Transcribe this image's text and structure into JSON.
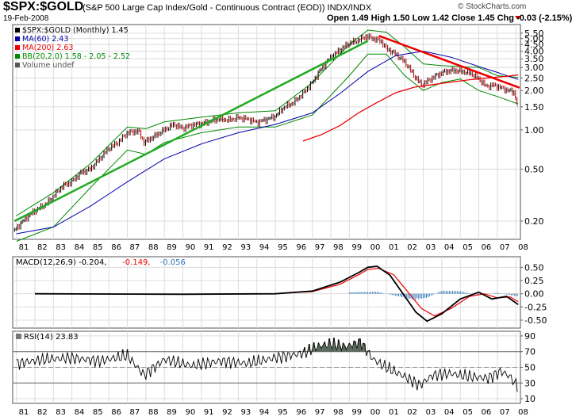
{
  "header": {
    "ticker": "$SPX:$GOLD",
    "subtitle": "(S&P 500 Large Cap Index/Gold - Continuous Contract (EOD)) INDX/INDX",
    "date": "19-Feb-2008",
    "ohlc": "Open 1.49  High 1.50  Low 1.42  Close 1.45  Chg -0.03 (-2.15%)",
    "credit": "© StockCharts.com"
  },
  "colors": {
    "price": "#000000",
    "up_bar": "#000000",
    "down_bar": "#cc0000",
    "ma60": "#0000aa",
    "ma200": "#ee0000",
    "bb": "#008800",
    "trend_up": "#22aa22",
    "trend_down": "#ee0000",
    "macd": "#000000",
    "signal": "#ee0000",
    "histogram": "#3377bb",
    "rsi": "#000000",
    "rsi_fill": "#556655"
  },
  "chart_data": [
    {
      "type": "line",
      "title": "$SPX:$GOLD (Monthly) 1.45",
      "scale": "log",
      "legend": [
        {
          "label": "$SPX:$GOLD (Monthly) 1.45",
          "color": "#000000"
        },
        {
          "label": "MA(60) 2.43",
          "color": "#0000aa"
        },
        {
          "label": "MA(200) 2.63",
          "color": "#ee0000"
        },
        {
          "label": "BB(20,2.0) 1.58 - 2.05 - 2.52",
          "color": "#008800"
        },
        {
          "label": "Volume undef",
          "color": "#555555"
        }
      ],
      "legend_position": "top-left",
      "y_ticks": [
        5.5,
        5.0,
        4.5,
        4.0,
        3.5,
        3.0,
        2.5,
        2.0,
        1.5,
        1.0,
        0.5,
        0.2
      ],
      "y_tick_labels": [
        "5.50",
        "5.00",
        "4.50",
        "4.00",
        "3.50",
        "3.00",
        "2.50",
        "2.00",
        "1.50",
        "1.00",
        "0.50",
        "0.20"
      ],
      "ylim": [
        0.145,
        6.4
      ],
      "x_tick_labels": [
        "81",
        "82",
        "83",
        "84",
        "85",
        "86",
        "87",
        "88",
        "89",
        "90",
        "91",
        "92",
        "93",
        "94",
        "95",
        "96",
        "97",
        "98",
        "99",
        "00",
        "01",
        "02",
        "03",
        "04",
        "05",
        "06",
        "07",
        "08"
      ],
      "xlim": [
        1980.8,
        2008.25
      ],
      "grid": true,
      "series": [
        {
          "name": "$SPX:$GOLD",
          "x": [
            1980.9,
            1981.5,
            1982.0,
            1982.6,
            1983.0,
            1983.5,
            1984.0,
            1984.5,
            1985.0,
            1985.5,
            1986.0,
            1986.5,
            1987.0,
            1987.6,
            1987.9,
            1988.5,
            1989.0,
            1989.5,
            1990.0,
            1990.5,
            1991.0,
            1991.5,
            1992.0,
            1992.5,
            1993.0,
            1993.5,
            1994.0,
            1994.5,
            1995.0,
            1995.5,
            1996.0,
            1996.5,
            1997.0,
            1997.5,
            1998.0,
            1998.5,
            1999.0,
            1999.5,
            1999.9,
            2000.3,
            2000.7,
            2001.0,
            2001.5,
            2002.0,
            2002.5,
            2002.9,
            2003.3,
            2003.8,
            2004.2,
            2004.7,
            2005.1,
            2005.6,
            2006.0,
            2006.4,
            2006.8,
            2007.2,
            2007.6,
            2007.9,
            2008.13
          ],
          "values": [
            0.17,
            0.21,
            0.24,
            0.27,
            0.31,
            0.37,
            0.4,
            0.47,
            0.5,
            0.6,
            0.72,
            0.8,
            0.95,
            0.98,
            0.8,
            0.9,
            1.0,
            1.1,
            1.03,
            1.09,
            1.11,
            1.17,
            1.21,
            1.19,
            1.24,
            1.21,
            1.14,
            1.2,
            1.27,
            1.5,
            1.62,
            1.9,
            2.3,
            2.95,
            3.6,
            4.1,
            4.6,
            4.85,
            5.2,
            5.0,
            4.8,
            4.2,
            3.8,
            3.3,
            2.6,
            2.2,
            2.4,
            2.65,
            2.8,
            2.85,
            2.8,
            2.7,
            2.45,
            2.15,
            2.2,
            2.1,
            2.0,
            1.95,
            1.45
          ]
        },
        {
          "name": "MA(60)",
          "x": [
            1981.0,
            1983.0,
            1985.0,
            1987.0,
            1989.0,
            1991.0,
            1993.0,
            1995.0,
            1997.0,
            1998.5,
            2000.0,
            2001.5,
            2003.0,
            2004.5,
            2006.0,
            2007.0,
            2008.13
          ],
          "values": [
            0.16,
            0.18,
            0.26,
            0.4,
            0.6,
            0.78,
            0.95,
            1.1,
            1.35,
            1.9,
            2.8,
            3.7,
            4.0,
            3.6,
            3.05,
            2.75,
            2.43
          ]
        },
        {
          "name": "MA(200)",
          "x": [
            1996.5,
            1997.5,
            1998.5,
            1999.5,
            2000.5,
            2001.5,
            2002.5,
            2003.5,
            2004.5,
            2005.5,
            2006.5,
            2007.5,
            2008.13
          ],
          "values": [
            0.82,
            0.92,
            1.08,
            1.35,
            1.62,
            1.92,
            2.12,
            2.22,
            2.32,
            2.42,
            2.5,
            2.57,
            2.63
          ]
        },
        {
          "name": "BB upper",
          "x": [
            1981.0,
            1983.0,
            1985.0,
            1987.0,
            1988.0,
            1989.0,
            1991.0,
            1993.0,
            1995.0,
            1997.0,
            1999.0,
            2000.0,
            2001.0,
            2002.0,
            2003.0,
            2004.0,
            2005.0,
            2006.0,
            2007.0,
            2008.13
          ],
          "values": [
            0.22,
            0.33,
            0.55,
            1.05,
            1.02,
            1.15,
            1.25,
            1.35,
            1.4,
            2.3,
            4.5,
            5.8,
            5.6,
            4.3,
            3.2,
            3.1,
            3.05,
            3.0,
            2.6,
            2.52
          ]
        },
        {
          "name": "BB lower",
          "x": [
            1981.0,
            1983.0,
            1985.0,
            1987.0,
            1988.0,
            1989.0,
            1991.0,
            1993.0,
            1995.0,
            1997.0,
            1999.0,
            2000.0,
            2001.0,
            2002.0,
            2003.0,
            2004.0,
            2005.0,
            2006.0,
            2007.0,
            2008.13
          ],
          "values": [
            0.14,
            0.18,
            0.36,
            0.7,
            0.65,
            0.8,
            0.95,
            1.05,
            1.05,
            1.3,
            2.6,
            3.8,
            3.8,
            2.6,
            2.0,
            2.3,
            2.45,
            2.0,
            1.8,
            1.58
          ]
        },
        {
          "name": "Uptrend line",
          "x": [
            1980.9,
            2000.0
          ],
          "values": [
            0.2,
            4.8
          ]
        },
        {
          "name": "Downtrend line",
          "x": [
            2000.6,
            2008.2
          ],
          "values": [
            5.25,
            2.1
          ]
        }
      ]
    },
    {
      "type": "line",
      "title": "MACD(12,26,9) -0.204, -0.149, -0.056",
      "legend": [
        {
          "label": "MACD(12,26,9) -0.204,",
          "color": "#000000"
        },
        {
          "label": "-0.149,",
          "color": "#ee0000"
        },
        {
          "label": "-0.056",
          "color": "#3377bb"
        }
      ],
      "y_ticks": [
        0.5,
        0.25,
        0.0,
        -0.25,
        -0.5
      ],
      "y_tick_labels": [
        "0.50",
        "0.25",
        "0.00",
        "-0.25",
        "-0.50"
      ],
      "ylim": [
        -0.65,
        0.7
      ],
      "series": [
        {
          "name": "MACD",
          "x": [
            1982.0,
            1990.0,
            1995.0,
            1997.0,
            1998.5,
            1999.5,
            2000.0,
            2000.5,
            2001.2,
            2002.0,
            2002.6,
            2003.2,
            2004.0,
            2005.0,
            2006.0,
            2006.7,
            2007.5,
            2008.13
          ],
          "values": [
            0.0,
            -0.01,
            0.0,
            0.05,
            0.22,
            0.4,
            0.5,
            0.52,
            0.35,
            -0.05,
            -0.35,
            -0.52,
            -0.38,
            -0.1,
            0.03,
            -0.1,
            -0.05,
            -0.204
          ]
        },
        {
          "name": "Signal",
          "x": [
            1982.0,
            1990.0,
            1995.0,
            1997.0,
            1998.5,
            1999.5,
            2000.0,
            2000.6,
            2001.4,
            2002.2,
            2002.9,
            2003.6,
            2004.5,
            2005.5,
            2006.3,
            2007.0,
            2007.7,
            2008.13
          ],
          "values": [
            0.0,
            -0.01,
            0.0,
            0.04,
            0.18,
            0.36,
            0.46,
            0.48,
            0.36,
            0.02,
            -0.28,
            -0.42,
            -0.28,
            -0.05,
            0.0,
            -0.08,
            -0.06,
            -0.149
          ]
        },
        {
          "name": "Histogram",
          "x": [
            1999.0,
            2000.5,
            2001.5,
            2002.5,
            2003.2,
            2004.0,
            2005.0,
            2006.0,
            2007.0,
            2008.13
          ],
          "values": [
            0.03,
            0.04,
            -0.04,
            -0.12,
            -0.08,
            0.06,
            0.05,
            -0.03,
            0.02,
            -0.056
          ]
        }
      ]
    },
    {
      "type": "line",
      "title": "RSI(14) 23.83",
      "legend": [
        {
          "label": "RSI(14) 23.83",
          "color": "#000000"
        }
      ],
      "y_ticks": [
        90,
        70,
        50,
        30,
        10
      ],
      "y_tick_labels": [
        "90",
        "70",
        "50",
        "30",
        "10"
      ],
      "ylim": [
        4,
        96
      ],
      "overbought": 70,
      "oversold": 30,
      "series": [
        {
          "name": "RSI(14)",
          "x": [
            1981.0,
            1982.5,
            1984.0,
            1985.5,
            1987.0,
            1987.9,
            1989.0,
            1990.5,
            1992.0,
            1993.5,
            1995.0,
            1996.5,
            1997.2,
            1998.0,
            1998.8,
            1999.6,
            2000.3,
            2001.0,
            2002.0,
            2002.8,
            2003.5,
            2004.5,
            2005.5,
            2006.5,
            2007.2,
            2007.7,
            2008.13
          ],
          "values": [
            55,
            60,
            62,
            58,
            65,
            40,
            60,
            52,
            58,
            55,
            62,
            68,
            76,
            80,
            76,
            82,
            60,
            50,
            38,
            27,
            40,
            42,
            38,
            36,
            45,
            38,
            23.83
          ]
        }
      ]
    }
  ]
}
